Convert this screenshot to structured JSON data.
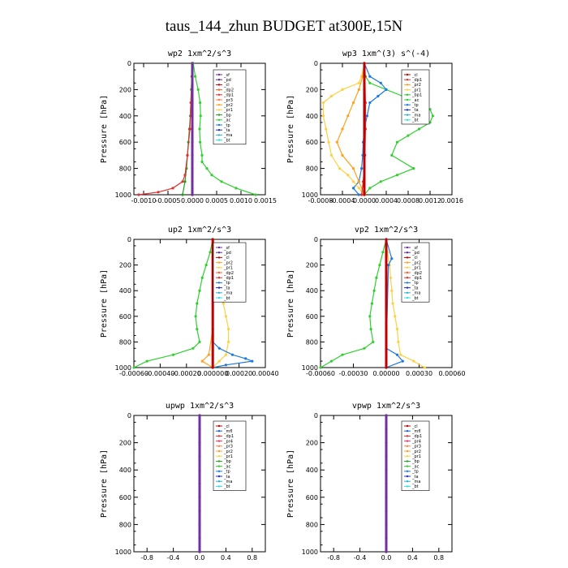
{
  "title": "taus_144_zhun  BUDGET at300E,15N",
  "colors": {
    "sf": "#7030a0",
    "pd": "#5b2c91",
    "cl": "#c00000",
    "dp2": "#ff5a28",
    "dp1": "#e03030",
    "pr3": "#ff8040",
    "pr2": "#ffa020",
    "pr1": "#ffd040",
    "bp": "#20a020",
    "ac": "#30d030",
    "tp": "#1e78e0",
    "ta": "#2030c0",
    "ma": "#30b0d0",
    "bt": "#30e0e0",
    "mfl": "#1a5fd0",
    "pr4": "#ff3060",
    "bp1": "#30c030"
  },
  "chart_data": [
    {
      "type": "line",
      "id": "wp2",
      "title": "wp2  1xm^2/s^3",
      "ylabel": "Pressure [hPa]",
      "xlim": [
        -0.0012,
        0.0015
      ],
      "ylim": [
        1000,
        0
      ],
      "xticks": [
        -0.001,
        -0.0005,
        0.0,
        0.0005,
        0.001,
        0.0015
      ],
      "xtick_labels": [
        "-0.0010",
        "-0.0005",
        "0.0000",
        "0.0005",
        "0.0010",
        "0.0015"
      ],
      "yticks": [
        0,
        200,
        400,
        600,
        800,
        1000
      ],
      "ytick_labels": [
        "0",
        "200",
        "400",
        "600",
        "800",
        "1000"
      ],
      "legend": [
        "_sf",
        "_pd",
        "_cl",
        "_dp2",
        "_dp1",
        "_pr3",
        "_pr2",
        "_pr1",
        "_bp",
        "_ac",
        "_tp",
        "_ta",
        "_ma",
        "_bt"
      ],
      "legend_position": "top-right",
      "series": [
        {
          "name": "_ac",
          "color_key": "ac",
          "p": [
            0,
            100,
            200,
            300,
            400,
            500,
            600,
            700,
            750,
            800,
            850,
            900,
            950,
            1000
          ],
          "x": [
            2e-05,
            6e-05,
            0.00012,
            0.00016,
            0.00017,
            0.00015,
            0.00016,
            0.0002,
            0.0002,
            0.0003,
            0.0004,
            0.0006,
            0.0009,
            0.0013
          ]
        },
        {
          "name": "_bp",
          "color_key": "bp",
          "p": [
            0,
            100,
            200,
            300,
            400,
            500,
            600,
            700,
            800,
            900,
            1000
          ],
          "x": [
            0.0,
            -1e-05,
            -2e-05,
            -3e-05,
            -4e-05,
            -6e-05,
            -8e-05,
            -0.0001,
            -0.00012,
            -0.00015,
            -0.0002
          ]
        },
        {
          "name": "_dp1",
          "color_key": "dp1",
          "p": [
            0,
            100,
            300,
            500,
            700,
            850,
            900,
            950,
            980,
            1000
          ],
          "x": [
            0.0,
            -1e-05,
            -3e-05,
            -5e-05,
            -0.0001,
            -0.00015,
            -0.0002,
            -0.0004,
            -0.0007,
            -0.0011
          ]
        },
        {
          "name": "_cl",
          "color_key": "cl",
          "p": [
            0,
            100,
            200,
            300,
            400,
            500,
            600,
            700,
            800,
            900,
            1000
          ],
          "x": [
            0.0,
            0.0,
            0.0,
            0.0,
            0.0,
            0.0,
            0.0,
            0.0,
            0.0,
            0.0,
            0.0
          ]
        },
        {
          "name": "_sf",
          "color_key": "sf",
          "p": [
            0,
            1000
          ],
          "x": [
            0.0,
            0.0
          ]
        }
      ]
    },
    {
      "type": "line",
      "id": "wp3",
      "title": "wp3  1xm^(3) s^(-4)",
      "ylabel": "Pressure [hPa]",
      "xlim": [
        -0.0008,
        0.0016
      ],
      "ylim": [
        1000,
        0
      ],
      "xticks": [
        -0.0008,
        -0.0004,
        0.0,
        0.0004,
        0.0008,
        0.0012,
        0.0016
      ],
      "xtick_labels": [
        "-0.0008",
        "-0.0004",
        "0.0000",
        "0.0004",
        "0.0008",
        "0.0012",
        "0.0016"
      ],
      "yticks": [
        0,
        200,
        400,
        600,
        800,
        1000
      ],
      "ytick_labels": [
        "0",
        "200",
        "400",
        "600",
        "800",
        "1000"
      ],
      "legend": [
        "_cl",
        "_dp1",
        "_pr2",
        "_pr1",
        "_bp1",
        "_ac",
        "_tp",
        "_ta",
        "_ma",
        "_bt"
      ],
      "legend_position": "top-right",
      "series": [
        {
          "name": "_ac",
          "color_key": "ac",
          "p": [
            0,
            100,
            150,
            200,
            250,
            300,
            350,
            400,
            450,
            500,
            550,
            600,
            700,
            800,
            850,
            900,
            950,
            1000
          ],
          "x": [
            0.0,
            2e-05,
            0.0001,
            0.0004,
            0.0007,
            0.001,
            0.0012,
            0.00125,
            0.0012,
            0.001,
            0.0008,
            0.0006,
            0.0005,
            0.0009,
            0.0006,
            0.0003,
            0.0001,
            0.0
          ]
        },
        {
          "name": "_tp",
          "color_key": "tp",
          "p": [
            0,
            100,
            150,
            200,
            250,
            300,
            400,
            500,
            600,
            700,
            800,
            900,
            950,
            1000
          ],
          "x": [
            0.0,
            0.0001,
            0.0003,
            0.0004,
            0.00025,
            0.0001,
            5e-05,
            0.0,
            -2e-05,
            -3e-05,
            -5e-05,
            -0.0001,
            -0.0002,
            -0.0001
          ]
        },
        {
          "name": "_pr1",
          "color_key": "pr1",
          "p": [
            0,
            100,
            150,
            200,
            250,
            300,
            400,
            500,
            600,
            700,
            800,
            850,
            900,
            950,
            1000
          ],
          "x": [
            0.0,
            -5e-05,
            -0.0001,
            -0.0004,
            -0.0006,
            -0.00075,
            -0.00075,
            -0.0007,
            -0.00065,
            -0.0006,
            -0.00045,
            -0.0003,
            -0.0002,
            -0.0001,
            0.0
          ]
        },
        {
          "name": "_pr2",
          "color_key": "pr2",
          "p": [
            0,
            100,
            200,
            300,
            400,
            500,
            600,
            700,
            800,
            900,
            1000
          ],
          "x": [
            0.0,
            -3e-05,
            -0.0001,
            -0.0002,
            -0.0003,
            -0.0004,
            -0.0005,
            -0.0004,
            -0.0002,
            -0.0001,
            0.0
          ]
        },
        {
          "name": "_dp1",
          "color_key": "dp1",
          "p": [
            0,
            100,
            300,
            500,
            700,
            900,
            1000
          ],
          "x": [
            0.0,
            1e-05,
            2e-05,
            2e-05,
            1e-05,
            -2e-05,
            -5e-05
          ]
        },
        {
          "name": "_cl",
          "color_key": "cl",
          "p": [
            0,
            200,
            400,
            600,
            800,
            1000
          ],
          "x": [
            0.0,
            0.0,
            0.0,
            0.0,
            0.0,
            0.0
          ]
        }
      ]
    },
    {
      "type": "line",
      "id": "up2",
      "title": "up2  1xm^2/s^3",
      "ylabel": "Pressure [hPa]",
      "xlim": [
        -0.0006,
        0.0004
      ],
      "ylim": [
        1000,
        0
      ],
      "xticks": [
        -0.0006,
        -0.0004,
        -0.0002,
        0.0,
        0.0002,
        0.0004
      ],
      "xtick_labels": [
        "-0.00060",
        "-0.00040",
        "-0.00020",
        "0.000000",
        "0.00020",
        "0.00040"
      ],
      "yticks": [
        0,
        200,
        400,
        600,
        800,
        1000
      ],
      "ytick_labels": [
        "0",
        "200",
        "400",
        "600",
        "800",
        "1000"
      ],
      "legend": [
        "_sf",
        "_pd",
        "_cl",
        "_pr2",
        "_pr1",
        "_dp2",
        "_dp1",
        "_tp",
        "_ta",
        "_ma",
        "_bt"
      ],
      "legend_position": "top-right",
      "series": [
        {
          "name": "_dp2",
          "color_key": "ac",
          "p": [
            0,
            100,
            200,
            300,
            400,
            500,
            600,
            700,
            800,
            850,
            900,
            950,
            1000
          ],
          "x": [
            0.0,
            -2e-05,
            -5e-05,
            -8e-05,
            -0.0001,
            -0.00012,
            -0.00013,
            -0.00012,
            -0.0001,
            -0.00015,
            -0.0003,
            -0.0005,
            -0.0006
          ]
        },
        {
          "name": "_pr1",
          "color_key": "pr1",
          "p": [
            0,
            100,
            200,
            300,
            400,
            500,
            600,
            700,
            800,
            900,
            950,
            1000
          ],
          "x": [
            0.0,
            2e-05,
            5e-05,
            6e-05,
            7e-05,
            8e-05,
            0.0001,
            0.00012,
            0.00012,
            0.0001,
            5e-05,
            0.0
          ]
        },
        {
          "name": "_tp",
          "color_key": "tp",
          "p": [
            0,
            800,
            850,
            900,
            930,
            950,
            980,
            1000
          ],
          "x": [
            0.0,
            0.0,
            5e-05,
            0.00015,
            0.00025,
            0.0003,
            0.0001,
            0.0
          ]
        },
        {
          "name": "_pr2",
          "color_key": "pr2",
          "p": [
            0,
            700,
            900,
            950,
            1000
          ],
          "x": [
            0.0,
            0.0,
            -3e-05,
            -8e-05,
            0.0
          ]
        },
        {
          "name": "_cl",
          "color_key": "cl",
          "p": [
            0,
            1000
          ],
          "x": [
            0.0,
            0.0
          ]
        }
      ]
    },
    {
      "type": "line",
      "id": "vp2",
      "title": "vp2  1xm^2/s^3",
      "ylabel": "Pressure [hPa]",
      "xlim": [
        -0.0006,
        0.0006
      ],
      "ylim": [
        1000,
        0
      ],
      "xticks": [
        -0.0006,
        -0.0003,
        0.0,
        0.0003,
        0.0006
      ],
      "xtick_labels": [
        "-0.00060",
        "-0.00030",
        "0.00000",
        "0.00030",
        "0.00060"
      ],
      "yticks": [
        0,
        200,
        400,
        600,
        800,
        1000
      ],
      "ytick_labels": [
        "0",
        "200",
        "400",
        "600",
        "800",
        "1000"
      ],
      "legend": [
        "_sf",
        "_pd",
        "_cl",
        "_pr2",
        "_pr1",
        "_dp2",
        "_dp1",
        "_tp",
        "_ta",
        "_ma",
        "_bt"
      ],
      "legend_position": "top-right",
      "series": [
        {
          "name": "_dp2",
          "color_key": "ac",
          "p": [
            0,
            100,
            200,
            300,
            400,
            500,
            600,
            700,
            800,
            850,
            900,
            950,
            1000
          ],
          "x": [
            0.0,
            -3e-05,
            -6e-05,
            -9e-05,
            -0.00011,
            -0.00013,
            -0.00015,
            -0.00014,
            -0.00012,
            -0.0002,
            -0.0004,
            -0.0005,
            -0.0006
          ]
        },
        {
          "name": "_pr1",
          "color_key": "pr1",
          "p": [
            0,
            100,
            200,
            300,
            400,
            500,
            600,
            700,
            800,
            900,
            950,
            1000
          ],
          "x": [
            0.0,
            1e-05,
            3e-05,
            4e-05,
            5e-05,
            6e-05,
            8e-05,
            0.0001,
            0.00011,
            0.00013,
            0.00025,
            0.00035
          ]
        },
        {
          "name": "_tp",
          "color_key": "tp",
          "p": [
            0,
            150,
            200,
            850,
            900,
            950,
            1000
          ],
          "x": [
            0.0,
            5e-05,
            2e-05,
            0.0,
            0.0001,
            0.00015,
            0.0
          ]
        },
        {
          "name": "_cl",
          "color_key": "cl",
          "p": [
            0,
            1000
          ],
          "x": [
            0.0,
            0.0
          ]
        }
      ]
    },
    {
      "type": "line",
      "id": "upwp",
      "title": "upwp  1xm^2/s^3",
      "ylabel": "Pressure [hPa]",
      "xlim": [
        -1.0,
        1.0
      ],
      "ylim": [
        1000,
        0
      ],
      "xticks": [
        -0.8,
        -0.4,
        0.0,
        0.4,
        0.8
      ],
      "xtick_labels": [
        "-0.8",
        "-0.4",
        "0.0",
        "0.4",
        "0.8"
      ],
      "yticks": [
        0,
        200,
        400,
        600,
        800,
        1000
      ],
      "ytick_labels": [
        "0",
        "200",
        "400",
        "600",
        "800",
        "1000"
      ],
      "legend": [
        "_cl",
        "_mfl",
        "_dp1",
        "_pr4",
        "_pr3",
        "_pr2",
        "_pr1",
        "_bp",
        "_ac",
        "_tp",
        "_ta",
        "_ma",
        "_bt"
      ],
      "legend_position": "top-right",
      "series": [
        {
          "name": "_pr4",
          "color_key": "cl",
          "p": [
            0,
            100,
            200,
            300,
            400,
            500,
            600,
            700,
            800,
            900,
            1000
          ],
          "x": [
            0.0,
            0.0,
            0.0,
            0.0,
            0.0,
            0.0,
            0.0,
            0.0,
            0.0,
            0.0,
            0.0
          ]
        },
        {
          "name": "_cl",
          "color_key": "sf",
          "p": [
            0,
            1000
          ],
          "x": [
            0.0,
            0.0
          ]
        }
      ]
    },
    {
      "type": "line",
      "id": "vpwp",
      "title": "vpwp  1xm^2/s^3",
      "ylabel": "Pressure [hPa]",
      "xlim": [
        -1.0,
        1.0
      ],
      "ylim": [
        1000,
        0
      ],
      "xticks": [
        -0.8,
        -0.4,
        0.0,
        0.4,
        0.8
      ],
      "xtick_labels": [
        "-0.8",
        "-0.4",
        "0.0",
        "0.4",
        "0.8"
      ],
      "yticks": [
        0,
        200,
        400,
        600,
        800,
        1000
      ],
      "ytick_labels": [
        "0",
        "200",
        "400",
        "600",
        "800",
        "1000"
      ],
      "legend": [
        "_cl",
        "_mfl",
        "_dp1",
        "_pr4",
        "_pr3",
        "_pr2",
        "_pr1",
        "_bp",
        "_ac",
        "_tp",
        "_ta",
        "_ma",
        "_bt"
      ],
      "legend_position": "top-right",
      "series": [
        {
          "name": "_pr4",
          "color_key": "cl",
          "p": [
            0,
            100,
            200,
            300,
            400,
            500,
            600,
            700,
            800,
            900,
            1000
          ],
          "x": [
            0.0,
            0.0,
            0.0,
            0.0,
            0.0,
            0.0,
            0.0,
            0.0,
            0.0,
            0.0,
            0.0
          ]
        },
        {
          "name": "_cl",
          "color_key": "sf",
          "p": [
            0,
            1000
          ],
          "x": [
            0.0,
            0.0
          ]
        }
      ]
    }
  ]
}
